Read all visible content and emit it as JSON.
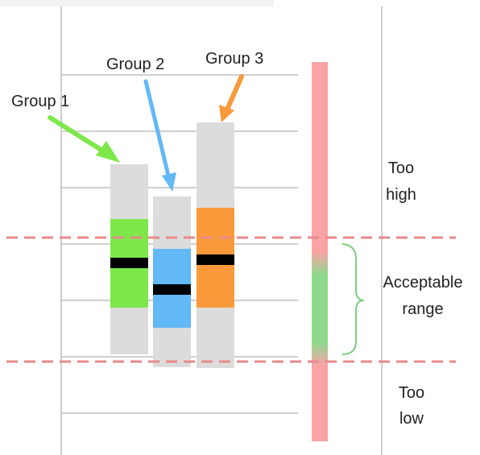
{
  "groups": [
    {
      "label": "Group 1",
      "color": "#7ee84a",
      "arrow_color": "#7ee84a"
    },
    {
      "label": "Group 2",
      "color": "#63b8f6",
      "arrow_color": "#63b8f6"
    },
    {
      "label": "Group 3",
      "color": "#f9993a",
      "arrow_color": "#f9993a"
    }
  ],
  "zones": {
    "too_high": [
      "Too",
      "high"
    ],
    "acceptable": [
      "Acceptable",
      "range"
    ],
    "too_low": [
      "Too",
      "low"
    ]
  },
  "colors": {
    "range_bar": "#f9a3a3",
    "acceptable_fill": "#8ed98e",
    "threshold_line": "#e88a8a",
    "bracket": "#7fce7f",
    "full_range_bar": "#dcdcdc",
    "median_mark": "#000000",
    "grid": "#cfcfcf"
  }
}
